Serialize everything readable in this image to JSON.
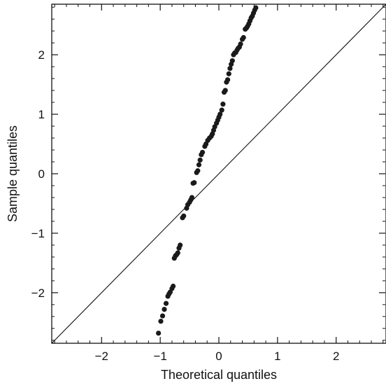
{
  "chart_data": {
    "type": "scatter",
    "title": "",
    "xlabel": "Theoretical quantiles",
    "ylabel": "Sample quantiles",
    "xlim": [
      -2.85,
      2.85
    ],
    "ylim": [
      -2.85,
      2.85
    ],
    "xticks": [
      -2,
      -1,
      0,
      1,
      2
    ],
    "yticks": [
      -2,
      -1,
      0,
      1,
      2
    ],
    "xtick_labels": [
      "−2",
      "−1",
      "0",
      "1",
      "2"
    ],
    "ytick_labels": [
      "−2",
      "−1",
      "0",
      "1",
      "2"
    ],
    "grid": false,
    "reference_line": {
      "slope": 1,
      "intercept": 0
    },
    "point_color": "#1a1a1a",
    "line_color": "#111111",
    "series": [
      {
        "points": [
          [
            -1.03,
            -2.68
          ],
          [
            -0.99,
            -2.48
          ],
          [
            -0.96,
            -2.39
          ],
          [
            -0.93,
            -2.28
          ],
          [
            -0.9,
            -2.18
          ],
          [
            -0.87,
            -2.06
          ],
          [
            -0.85,
            -2.02
          ],
          [
            -0.83,
            -1.99
          ],
          [
            -0.8,
            -1.93
          ],
          [
            -0.78,
            -1.89
          ],
          [
            -0.76,
            -1.42
          ],
          [
            -0.74,
            -1.38
          ],
          [
            -0.72,
            -1.36
          ],
          [
            -0.7,
            -1.33
          ],
          [
            -0.68,
            -1.25
          ],
          [
            -0.66,
            -1.2
          ],
          [
            -0.62,
            -0.74
          ],
          [
            -0.6,
            -0.71
          ],
          [
            -0.55,
            -0.58
          ],
          [
            -0.53,
            -0.52
          ],
          [
            -0.5,
            -0.48
          ],
          [
            -0.48,
            -0.44
          ],
          [
            -0.46,
            -0.4
          ],
          [
            -0.44,
            -0.16
          ],
          [
            -0.42,
            -0.15
          ],
          [
            -0.38,
            0.02
          ],
          [
            -0.36,
            0.05
          ],
          [
            -0.34,
            0.15
          ],
          [
            -0.32,
            0.23
          ],
          [
            -0.3,
            0.32
          ],
          [
            -0.28,
            0.36
          ],
          [
            -0.24,
            0.46
          ],
          [
            -0.22,
            0.5
          ],
          [
            -0.19,
            0.56
          ],
          [
            -0.16,
            0.6
          ],
          [
            -0.13,
            0.63
          ],
          [
            -0.11,
            0.67
          ],
          [
            -0.09,
            0.73
          ],
          [
            -0.07,
            0.79
          ],
          [
            -0.04,
            0.85
          ],
          [
            -0.02,
            0.9
          ],
          [
            0.0,
            0.95
          ],
          [
            0.02,
            1.0
          ],
          [
            0.05,
            1.07
          ],
          [
            0.07,
            1.17
          ],
          [
            0.09,
            1.37
          ],
          [
            0.11,
            1.4
          ],
          [
            0.13,
            1.54
          ],
          [
            0.15,
            1.58
          ],
          [
            0.17,
            1.68
          ],
          [
            0.19,
            1.77
          ],
          [
            0.21,
            1.84
          ],
          [
            0.23,
            1.9
          ],
          [
            0.25,
            2.0
          ],
          [
            0.27,
            2.03
          ],
          [
            0.29,
            2.04
          ],
          [
            0.31,
            2.08
          ],
          [
            0.33,
            2.11
          ],
          [
            0.35,
            2.13
          ],
          [
            0.37,
            2.18
          ],
          [
            0.4,
            2.26
          ],
          [
            0.42,
            2.29
          ],
          [
            0.45,
            2.43
          ],
          [
            0.47,
            2.45
          ],
          [
            0.49,
            2.48
          ],
          [
            0.51,
            2.52
          ],
          [
            0.53,
            2.57
          ],
          [
            0.55,
            2.62
          ],
          [
            0.57,
            2.65
          ],
          [
            0.59,
            2.7
          ],
          [
            0.61,
            2.75
          ],
          [
            0.63,
            2.79
          ]
        ]
      }
    ]
  }
}
